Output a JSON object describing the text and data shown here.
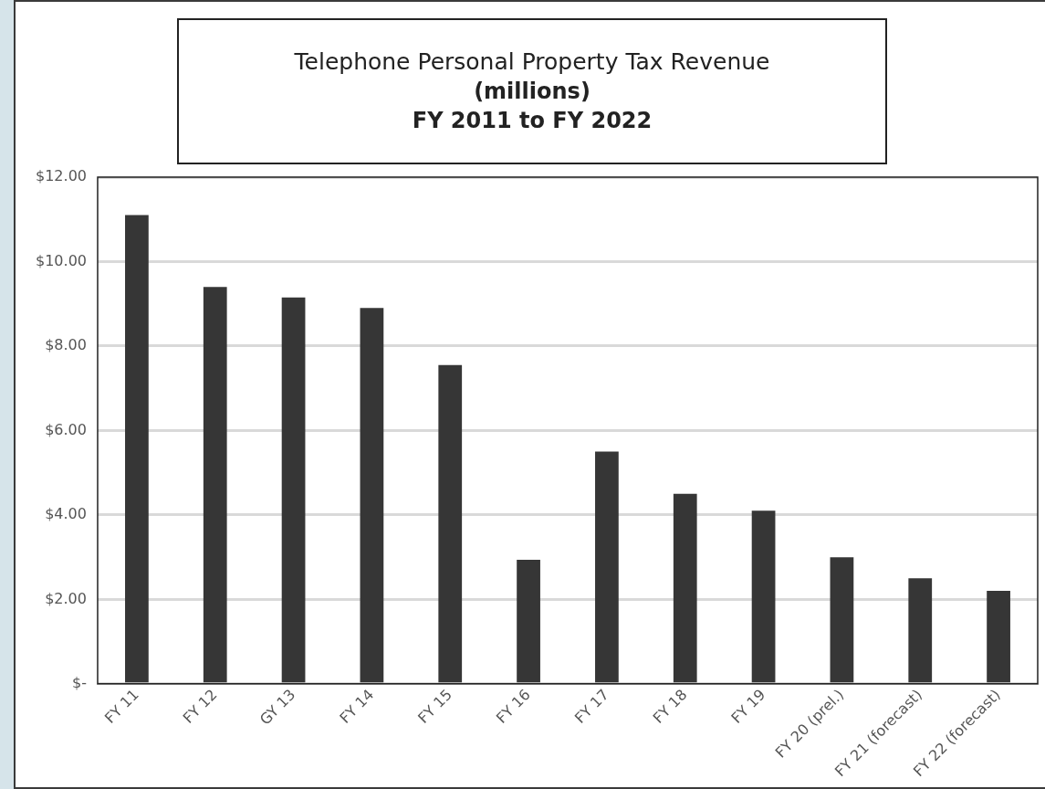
{
  "chart_data": {
    "type": "bar",
    "title": "Telephone Personal Property Tax Revenue",
    "subtitle": "(millions)\nFY 2011 to FY 2022",
    "categories": [
      "FY 11",
      "FY 12",
      "GY 13",
      "FY 14",
      "FY 15",
      "FY 16",
      "FY 17",
      "FY 18",
      "FY 19",
      "FY 20 (prel.)",
      "FY 21 (forecast)",
      "FY 22 (forecast)"
    ],
    "values": [
      11.1,
      9.4,
      9.15,
      8.9,
      7.55,
      2.94,
      5.5,
      4.5,
      4.1,
      3.0,
      2.5,
      2.2
    ],
    "color": "#363636",
    "ylim": [
      0,
      12
    ],
    "yticks": [
      {
        "value": 0,
        "label": "$-"
      },
      {
        "value": 2,
        "label": "$2.00"
      },
      {
        "value": 4,
        "label": "$4.00"
      },
      {
        "value": 6,
        "label": "$6.00"
      },
      {
        "value": 8,
        "label": "$8.00"
      },
      {
        "value": 10,
        "label": "$10.00"
      },
      {
        "value": 12,
        "label": "$12.00"
      }
    ],
    "grid": "y",
    "legend": false
  }
}
